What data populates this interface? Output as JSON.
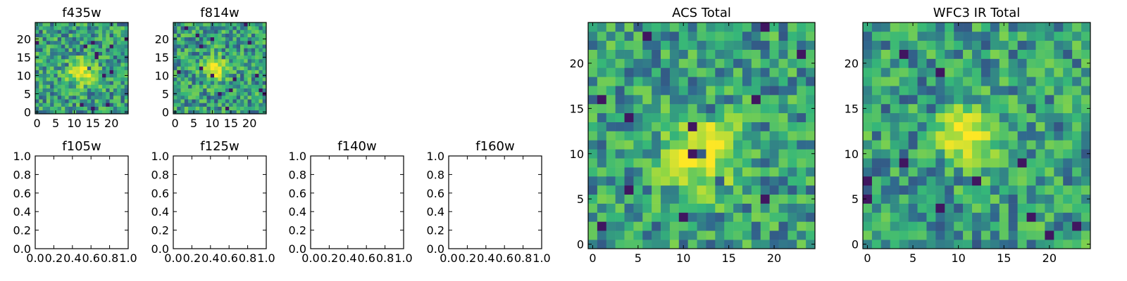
{
  "colormap": [
    "#440154",
    "#31688e",
    "#35b779",
    "#90d743",
    "#fde725"
  ],
  "frame_color": "#000000",
  "chart_data": [
    {
      "type": "heatmap",
      "id": "f435w",
      "title": "f435w",
      "xlim": [
        -0.5,
        24.5
      ],
      "ylim": [
        -0.5,
        24.5
      ],
      "xticks": [
        0,
        5,
        10,
        15,
        20
      ],
      "yticks": [
        0,
        5,
        10,
        15,
        20
      ],
      "rows": 25,
      "cols": 25,
      "peak": [
        12,
        11
      ],
      "peak_radius": 2.5,
      "noise_seed": 11
    },
    {
      "type": "heatmap",
      "id": "f814w",
      "title": "f814w",
      "xlim": [
        -0.5,
        24.5
      ],
      "ylim": [
        -0.5,
        24.5
      ],
      "xticks": [
        0,
        5,
        10,
        15,
        20
      ],
      "yticks": [
        0,
        5,
        10,
        15,
        20
      ],
      "rows": 25,
      "cols": 25,
      "peak": [
        11,
        12
      ],
      "peak_radius": 2.2,
      "noise_seed": 23
    },
    {
      "type": "scatter",
      "id": "f105w",
      "title": "f105w",
      "empty": true,
      "xlim": [
        0,
        1
      ],
      "ylim": [
        0,
        1
      ],
      "xticks": [
        "0.0",
        "0.2",
        "0.4",
        "0.6",
        "0.8",
        "1.0"
      ],
      "yticks": [
        "0.0",
        "0.2",
        "0.4",
        "0.6",
        "0.8",
        "1.0"
      ]
    },
    {
      "type": "scatter",
      "id": "f125w",
      "title": "f125w",
      "empty": true,
      "xlim": [
        0,
        1
      ],
      "ylim": [
        0,
        1
      ],
      "xticks": [
        "0.0",
        "0.2",
        "0.4",
        "0.6",
        "0.8",
        "1.0"
      ],
      "yticks": [
        "0.0",
        "0.2",
        "0.4",
        "0.6",
        "0.8",
        "1.0"
      ]
    },
    {
      "type": "scatter",
      "id": "f140w",
      "title": "f140w",
      "empty": true,
      "xlim": [
        0,
        1
      ],
      "ylim": [
        0,
        1
      ],
      "xticks": [
        "0.0",
        "0.2",
        "0.4",
        "0.6",
        "0.8",
        "1.0"
      ],
      "yticks": [
        "0.0",
        "0.2",
        "0.4",
        "0.6",
        "0.8",
        "1.0"
      ]
    },
    {
      "type": "scatter",
      "id": "f160w",
      "title": "f160w",
      "empty": true,
      "xlim": [
        0,
        1
      ],
      "ylim": [
        0,
        1
      ],
      "xticks": [
        "0.0",
        "0.2",
        "0.4",
        "0.6",
        "0.8",
        "1.0"
      ],
      "yticks": [
        "0.0",
        "0.2",
        "0.4",
        "0.6",
        "0.8",
        "1.0"
      ]
    },
    {
      "type": "heatmap",
      "id": "acs-total",
      "title": "ACS Total",
      "xlim": [
        -0.5,
        24.5
      ],
      "ylim": [
        -0.5,
        24.5
      ],
      "xticks": [
        0,
        5,
        10,
        15,
        20
      ],
      "yticks": [
        0,
        5,
        10,
        15,
        20
      ],
      "rows": 25,
      "cols": 25,
      "peak": [
        12,
        10
      ],
      "peak_radius": 2.8,
      "noise_seed": 37
    },
    {
      "type": "heatmap",
      "id": "wfc3-ir-total",
      "title": "WFC3 IR Total",
      "xlim": [
        -0.5,
        24.5
      ],
      "ylim": [
        -0.5,
        24.5
      ],
      "xticks": [
        0,
        5,
        10,
        15,
        20
      ],
      "yticks": [
        0,
        5,
        10,
        15,
        20
      ],
      "rows": 25,
      "cols": 25,
      "peak": [
        11,
        12
      ],
      "peak_radius": 2.0,
      "noise_seed": 53
    }
  ]
}
